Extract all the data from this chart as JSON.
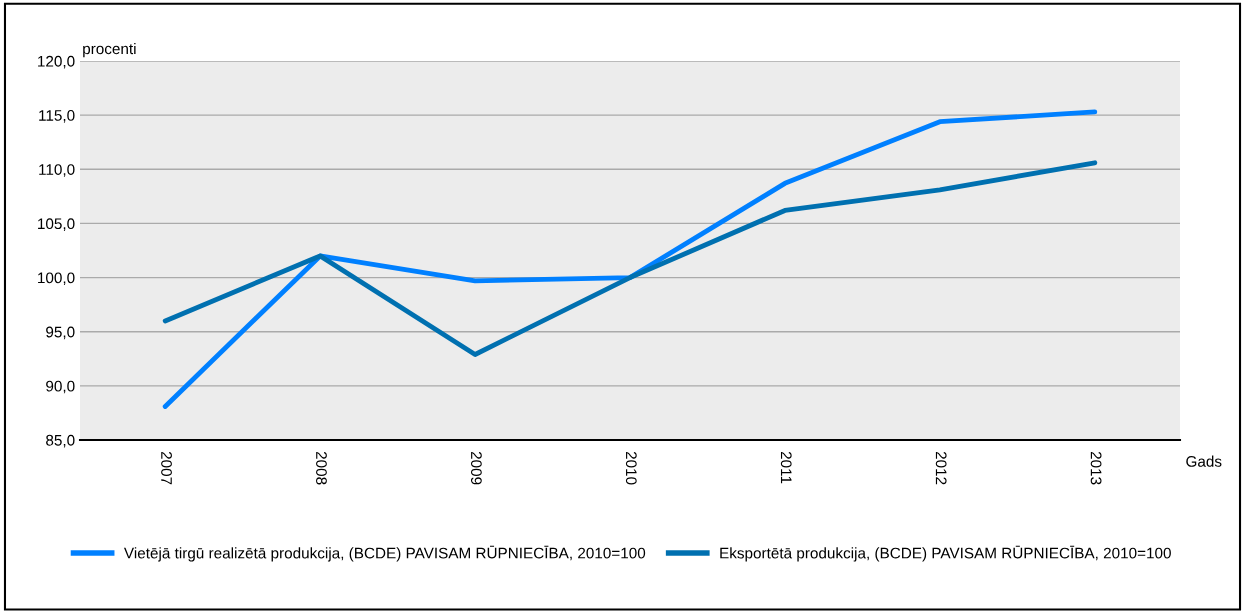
{
  "chart_data": {
    "type": "line",
    "ylabel": "procenti",
    "xlabel": "Gads",
    "categories": [
      "2007",
      "2008",
      "2009",
      "2010",
      "2011",
      "2012",
      "2013"
    ],
    "series": [
      {
        "name": "Vietējā tirgū realizētā produkcija, (BCDE) PAVISAM RŪPNIECĪBA, 2010=100",
        "color": "#0080ff",
        "values": [
          88.1,
          102.0,
          99.7,
          100.0,
          108.7,
          114.4,
          115.3
        ]
      },
      {
        "name": "Eksportētā produkcija, (BCDE) PAVISAM RŪPNIECĪBA, 2010=100",
        "color": "#0070b0",
        "values": [
          96.0,
          102.0,
          92.9,
          100.0,
          106.2,
          108.1,
          110.6
        ]
      }
    ],
    "ylim": [
      85,
      120
    ],
    "yticks": [
      {
        "value": 85,
        "label": "85,0"
      },
      {
        "value": 90,
        "label": "90,0"
      },
      {
        "value": 95,
        "label": "95,0"
      },
      {
        "value": 100,
        "label": "100,0"
      },
      {
        "value": 105,
        "label": "105,0"
      },
      {
        "value": 110,
        "label": "110,0"
      },
      {
        "value": 115,
        "label": "115,0"
      },
      {
        "value": 120,
        "label": "120,0"
      }
    ],
    "grid": "y",
    "legend": "bottom",
    "marker": "none",
    "line_style": "solid"
  }
}
